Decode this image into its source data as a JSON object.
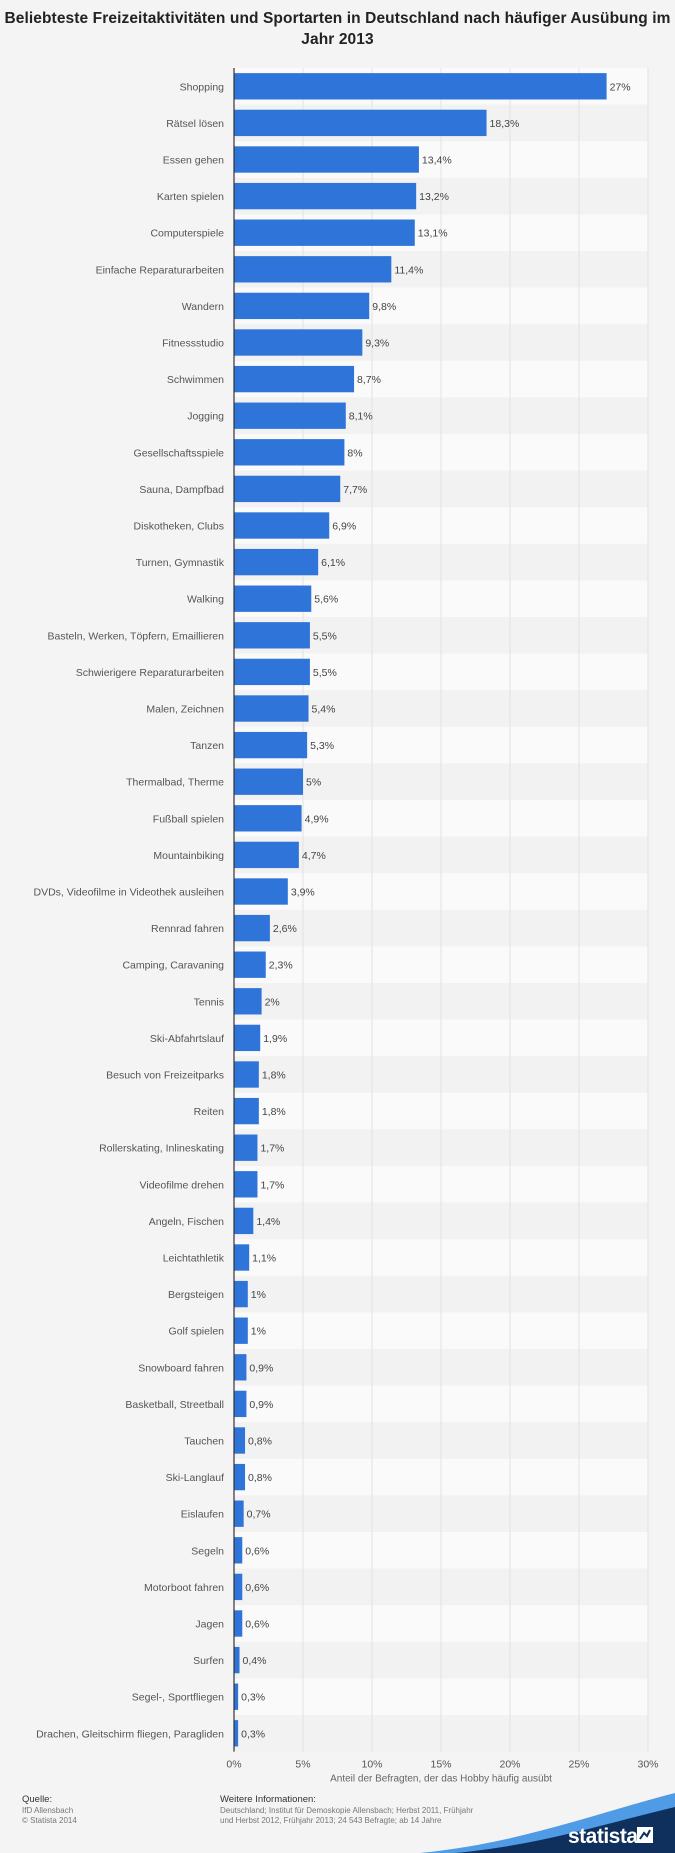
{
  "title": "Beliebteste Freizeitaktivitäten und Sportarten in Deutschland nach häufiger Ausübung im Jahr 2013",
  "chart_data": {
    "type": "bar",
    "orientation": "horizontal",
    "title": "Beliebteste Freizeitaktivitäten und Sportarten in Deutschland nach häufiger Ausübung im Jahr 2013",
    "xlabel": "Anteil der Befragten, der das Hobby häufig ausübt",
    "ylabel": "",
    "xlim": [
      0,
      30
    ],
    "ticks": [
      "0%",
      "5%",
      "10%",
      "15%",
      "20%",
      "25%",
      "30%"
    ],
    "tick_values": [
      0,
      5,
      10,
      15,
      20,
      25,
      30
    ],
    "grid": true,
    "bar_color": "#2f74d8",
    "categories": [
      "Shopping",
      "Rätsel lösen",
      "Essen gehen",
      "Karten spielen",
      "Computerspiele",
      "Einfache Reparaturarbeiten",
      "Wandern",
      "Fitnessstudio",
      "Schwimmen",
      "Jogging",
      "Gesellschaftsspiele",
      "Sauna, Dampfbad",
      "Diskotheken, Clubs",
      "Turnen, Gymnastik",
      "Walking",
      "Basteln, Werken, Töpfern, Emaillieren",
      "Schwierigere Reparaturarbeiten",
      "Malen, Zeichnen",
      "Tanzen",
      "Thermalbad, Therme",
      "Fußball spielen",
      "Mountainbiking",
      "DVDs, Videofilme in Videothek ausleihen",
      "Rennrad fahren",
      "Camping, Caravaning",
      "Tennis",
      "Ski-Abfahrtslauf",
      "Besuch von Freizeitparks",
      "Reiten",
      "Rollerskating, Inlineskating",
      "Videofilme drehen",
      "Angeln, Fischen",
      "Leichtathletik",
      "Bergsteigen",
      "Golf spielen",
      "Snowboard fahren",
      "Basketball, Streetball",
      "Tauchen",
      "Ski-Langlauf",
      "Eislaufen",
      "Segeln",
      "Motorboot fahren",
      "Jagen",
      "Surfen",
      "Segel-, Sportfliegen",
      "Drachen, Gleitschirm fliegen, Paragliden"
    ],
    "values": [
      27,
      18.3,
      13.4,
      13.2,
      13.1,
      11.4,
      9.8,
      9.3,
      8.7,
      8.1,
      8,
      7.7,
      6.9,
      6.1,
      5.6,
      5.5,
      5.5,
      5.4,
      5.3,
      5,
      4.9,
      4.7,
      3.9,
      2.6,
      2.3,
      2,
      1.9,
      1.8,
      1.8,
      1.7,
      1.7,
      1.4,
      1.1,
      1,
      1,
      0.9,
      0.9,
      0.8,
      0.8,
      0.7,
      0.6,
      0.6,
      0.6,
      0.4,
      0.3,
      0.3
    ],
    "labels": [
      "27%",
      "18,3%",
      "13,4%",
      "13,2%",
      "13,1%",
      "11,4%",
      "9,8%",
      "9,3%",
      "8,7%",
      "8,1%",
      "8%",
      "7,7%",
      "6,9%",
      "6,1%",
      "5,6%",
      "5,5%",
      "5,5%",
      "5,4%",
      "5,3%",
      "5%",
      "4,9%",
      "4,7%",
      "3,9%",
      "2,6%",
      "2,3%",
      "2%",
      "1,9%",
      "1,8%",
      "1,8%",
      "1,7%",
      "1,7%",
      "1,4%",
      "1,1%",
      "1%",
      "1%",
      "0,9%",
      "0,9%",
      "0,8%",
      "0,8%",
      "0,7%",
      "0,6%",
      "0,6%",
      "0,6%",
      "0,4%",
      "0,3%",
      "0,3%"
    ]
  },
  "footer": {
    "source_label": "Quelle:",
    "source_lines": [
      "IfD Allensbach",
      "© Statista 2014"
    ],
    "more_label": "Weitere Informationen:",
    "more_text": "Deutschland; Institut für Demoskopie Allensbach; Herbst 2011, Frühjahr und Herbst 2012, Frühjahr 2013; 24 543 Befragte; ab 14 Jahre",
    "brand": "statista"
  }
}
